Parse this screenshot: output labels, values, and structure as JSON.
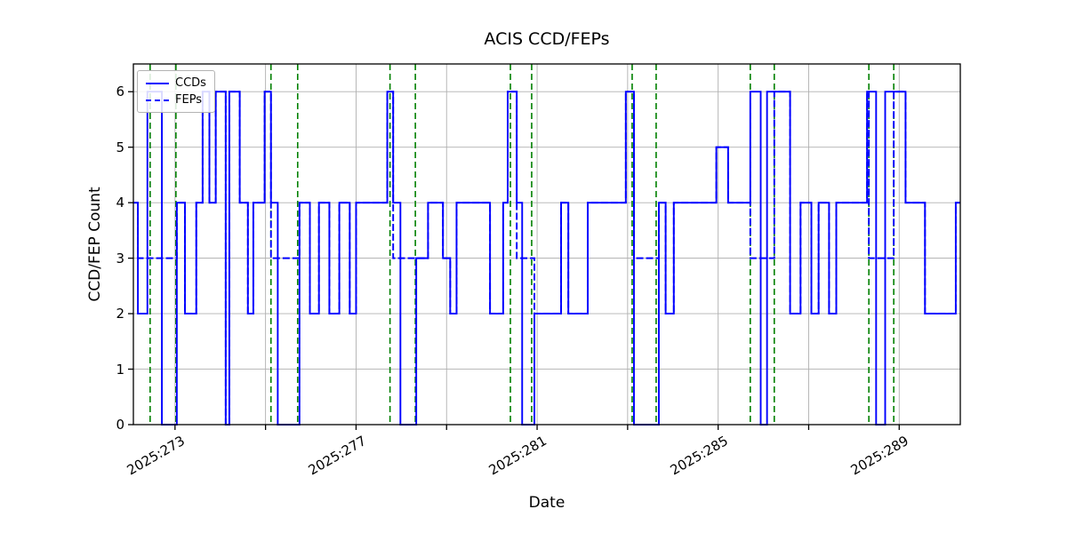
{
  "chart_data": {
    "type": "line",
    "subtype": "step",
    "title": "ACIS CCD/FEPs",
    "xlabel": "Date",
    "ylabel": "CCD/FEP Count",
    "xlim": [
      272.08,
      290.35
    ],
    "ylim": [
      0,
      6.5
    ],
    "grid": true,
    "legend_position": "upper left",
    "yticks": [
      0,
      1,
      2,
      3,
      4,
      5,
      6
    ],
    "xticks": [
      {
        "day": 273,
        "label": "2025:273"
      },
      {
        "day": 277,
        "label": "2025:277"
      },
      {
        "day": 281,
        "label": "2025:281"
      },
      {
        "day": 285,
        "label": "2025:285"
      },
      {
        "day": 289,
        "label": "2025:289"
      }
    ],
    "xgrid_days": [
      273,
      275,
      277,
      279,
      281,
      283,
      285,
      287,
      289
    ],
    "series": [
      {
        "name": "CCDs",
        "style": "solid",
        "color": "#0000ff",
        "end_day": 290.35,
        "steps": [
          [
            272.08,
            4
          ],
          [
            272.18,
            2
          ],
          [
            272.39,
            6
          ],
          [
            272.71,
            0
          ],
          [
            273.04,
            4
          ],
          [
            273.22,
            2
          ],
          [
            273.47,
            4
          ],
          [
            273.61,
            6
          ],
          [
            273.76,
            4
          ],
          [
            273.9,
            6
          ],
          [
            274.12,
            0
          ],
          [
            274.2,
            6
          ],
          [
            274.43,
            4
          ],
          [
            274.61,
            2
          ],
          [
            274.73,
            4
          ],
          [
            274.98,
            6
          ],
          [
            275.12,
            4
          ],
          [
            275.27,
            0
          ],
          [
            275.75,
            4
          ],
          [
            275.98,
            2
          ],
          [
            276.18,
            4
          ],
          [
            276.41,
            2
          ],
          [
            276.63,
            4
          ],
          [
            276.86,
            2
          ],
          [
            277.0,
            4
          ],
          [
            277.69,
            6
          ],
          [
            277.82,
            4
          ],
          [
            277.98,
            0
          ],
          [
            278.33,
            3
          ],
          [
            278.59,
            4
          ],
          [
            278.92,
            3
          ],
          [
            279.08,
            2
          ],
          [
            279.22,
            4
          ],
          [
            279.96,
            2
          ],
          [
            280.25,
            4
          ],
          [
            280.35,
            6
          ],
          [
            280.55,
            4
          ],
          [
            280.67,
            0
          ],
          [
            280.94,
            2
          ],
          [
            281.53,
            4
          ],
          [
            281.69,
            2
          ],
          [
            282.12,
            4
          ],
          [
            282.96,
            6
          ],
          [
            283.14,
            0
          ],
          [
            283.69,
            4
          ],
          [
            283.84,
            2
          ],
          [
            284.02,
            4
          ],
          [
            284.96,
            5
          ],
          [
            285.22,
            4
          ],
          [
            285.71,
            6
          ],
          [
            285.94,
            0
          ],
          [
            286.08,
            6
          ],
          [
            286.59,
            2
          ],
          [
            286.82,
            4
          ],
          [
            287.06,
            2
          ],
          [
            287.22,
            4
          ],
          [
            287.45,
            2
          ],
          [
            287.61,
            4
          ],
          [
            288.29,
            6
          ],
          [
            288.49,
            0
          ],
          [
            288.69,
            6
          ],
          [
            289.14,
            4
          ],
          [
            289.57,
            2
          ],
          [
            290.25,
            4
          ]
        ]
      },
      {
        "name": "FEPs",
        "style": "dashed",
        "color": "#0000ff",
        "end_day": 290.35,
        "steps": [
          [
            272.08,
            4
          ],
          [
            272.18,
            3
          ],
          [
            273.04,
            4
          ],
          [
            273.22,
            2
          ],
          [
            273.47,
            4
          ],
          [
            273.61,
            6
          ],
          [
            273.76,
            4
          ],
          [
            273.9,
            6
          ],
          [
            274.12,
            0
          ],
          [
            274.2,
            6
          ],
          [
            274.43,
            4
          ],
          [
            274.61,
            2
          ],
          [
            274.73,
            4
          ],
          [
            274.98,
            6
          ],
          [
            275.12,
            3
          ],
          [
            275.75,
            4
          ],
          [
            275.98,
            2
          ],
          [
            276.18,
            4
          ],
          [
            276.41,
            2
          ],
          [
            276.63,
            4
          ],
          [
            276.86,
            2
          ],
          [
            277.0,
            4
          ],
          [
            277.69,
            6
          ],
          [
            277.82,
            3
          ],
          [
            278.59,
            4
          ],
          [
            278.92,
            3
          ],
          [
            279.08,
            2
          ],
          [
            279.22,
            4
          ],
          [
            279.96,
            2
          ],
          [
            280.25,
            4
          ],
          [
            280.35,
            6
          ],
          [
            280.55,
            3
          ],
          [
            280.94,
            2
          ],
          [
            281.53,
            4
          ],
          [
            281.69,
            2
          ],
          [
            282.12,
            4
          ],
          [
            282.96,
            6
          ],
          [
            283.14,
            3
          ],
          [
            283.69,
            4
          ],
          [
            283.84,
            2
          ],
          [
            284.02,
            4
          ],
          [
            284.96,
            5
          ],
          [
            285.22,
            4
          ],
          [
            285.71,
            3
          ],
          [
            286.24,
            6
          ],
          [
            286.59,
            2
          ],
          [
            286.82,
            4
          ],
          [
            287.06,
            2
          ],
          [
            287.22,
            4
          ],
          [
            287.45,
            2
          ],
          [
            287.61,
            4
          ],
          [
            288.29,
            6
          ],
          [
            288.33,
            3
          ],
          [
            288.88,
            6
          ],
          [
            289.14,
            4
          ],
          [
            289.57,
            2
          ],
          [
            290.25,
            4
          ]
        ]
      }
    ],
    "radzone_lines": {
      "color": "#008000",
      "style": "dashed",
      "days": [
        272.45,
        273.02,
        275.12,
        275.71,
        277.75,
        278.31,
        280.41,
        280.88,
        283.1,
        283.63,
        285.71,
        286.24,
        288.33,
        288.88
      ]
    }
  },
  "colors": {
    "grid": "#b0b0b0",
    "axis": "#000000",
    "background": "#ffffff"
  }
}
